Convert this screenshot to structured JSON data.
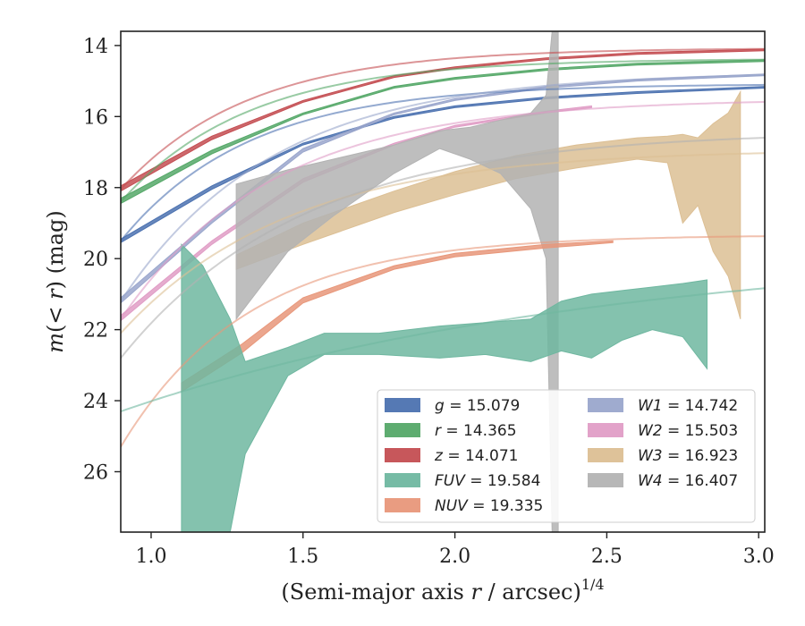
{
  "chart_data": {
    "type": "line",
    "xlabel_pre": "(Semi-major axis ",
    "xlabel_var": "r",
    "xlabel_mid": " / arcsec)",
    "xlabel_sup": "1/4",
    "ylabel_pre": "m(< ",
    "ylabel_var": "r",
    "ylabel_post": ") (mag)",
    "xlim": [
      0.9,
      3.02
    ],
    "ylim": [
      27.7,
      13.6
    ],
    "y_inverted": true,
    "xticks": [
      1.0,
      1.5,
      2.0,
      2.5,
      3.0
    ],
    "xtick_labels": [
      "1.0",
      "1.5",
      "2.0",
      "2.5",
      "3.0"
    ],
    "yticks": [
      14,
      16,
      18,
      20,
      22,
      24,
      26
    ],
    "ytick_labels": [
      "14",
      "16",
      "18",
      "20",
      "22",
      "24",
      "26"
    ],
    "grid": false,
    "legend_placement": "lower-right",
    "legend": [
      {
        "band": "g",
        "value": "15.079",
        "color": "#4c72b0"
      },
      {
        "band": "r",
        "value": "14.365",
        "color": "#55a868"
      },
      {
        "band": "z",
        "value": "14.071",
        "color": "#c44e52"
      },
      {
        "band": "FUV",
        "value": "19.584",
        "color": "#6fb7a0"
      },
      {
        "band": "NUV",
        "value": "19.335",
        "color": "#e8977a"
      },
      {
        "band": "W1",
        "value": "14.742",
        "color": "#9aa6cc"
      },
      {
        "band": "W2",
        "value": "15.503",
        "color": "#e09dc6"
      },
      {
        "band": "W3",
        "value": "16.923",
        "color": "#dcbf94"
      },
      {
        "band": "W4",
        "value": "16.407",
        "color": "#b3b3b3"
      }
    ],
    "series": [
      {
        "band": "g",
        "color": "#4c72b0",
        "asymptote": 15.08,
        "start": 19.5,
        "tau": 0.42,
        "data_end": 3.02,
        "band_points": [
          [
            0.9,
            19.45,
            19.55
          ],
          [
            1.2,
            17.95,
            18.05
          ],
          [
            1.5,
            16.75,
            16.8
          ],
          [
            1.8,
            16.0,
            16.05
          ],
          [
            2.0,
            15.7,
            15.75
          ],
          [
            2.3,
            15.45,
            15.5
          ],
          [
            2.6,
            15.3,
            15.35
          ],
          [
            3.02,
            15.15,
            15.2
          ]
        ]
      },
      {
        "band": "r",
        "color": "#55a868",
        "asymptote": 14.37,
        "start": 18.4,
        "tau": 0.42,
        "data_end": 3.02,
        "band_points": [
          [
            0.9,
            18.3,
            18.45
          ],
          [
            1.2,
            16.95,
            17.05
          ],
          [
            1.5,
            15.9,
            15.95
          ],
          [
            1.8,
            15.15,
            15.2
          ],
          [
            2.0,
            14.9,
            14.95
          ],
          [
            2.3,
            14.65,
            14.7
          ],
          [
            2.6,
            14.5,
            14.55
          ],
          [
            3.02,
            14.4,
            14.45
          ]
        ]
      },
      {
        "band": "z",
        "color": "#c44e52",
        "asymptote": 14.07,
        "start": 18.05,
        "tau": 0.42,
        "data_end": 3.02,
        "band_points": [
          [
            0.9,
            17.95,
            18.1
          ],
          [
            1.2,
            16.55,
            16.65
          ],
          [
            1.5,
            15.55,
            15.6
          ],
          [
            1.8,
            14.85,
            14.9
          ],
          [
            2.0,
            14.6,
            14.65
          ],
          [
            2.3,
            14.35,
            14.4
          ],
          [
            2.6,
            14.2,
            14.25
          ],
          [
            3.02,
            14.1,
            14.15
          ]
        ]
      },
      {
        "band": "W1",
        "color": "#9aa6cc",
        "asymptote": 14.74,
        "start": 21.2,
        "tau": 0.5,
        "data_end": 3.02,
        "band_points": [
          [
            0.9,
            21.1,
            21.25
          ],
          [
            1.2,
            18.9,
            19.0
          ],
          [
            1.5,
            16.9,
            17.0
          ],
          [
            1.8,
            15.9,
            15.95
          ],
          [
            2.0,
            15.5,
            15.55
          ],
          [
            2.3,
            15.15,
            15.2
          ],
          [
            2.6,
            14.95,
            15.0
          ],
          [
            3.02,
            14.8,
            14.85
          ]
        ]
      },
      {
        "band": "W2",
        "color": "#e09dc6",
        "asymptote": 15.5,
        "start": 21.7,
        "tau": 0.5,
        "data_end": 2.45,
        "band_points": [
          [
            0.9,
            21.6,
            21.75
          ],
          [
            1.2,
            19.5,
            19.6
          ],
          [
            1.5,
            17.75,
            17.85
          ],
          [
            1.8,
            16.75,
            16.8
          ],
          [
            2.0,
            16.25,
            16.3
          ],
          [
            2.3,
            15.85,
            15.9
          ],
          [
            2.45,
            15.7,
            15.75
          ]
        ]
      },
      {
        "band": "W3",
        "color": "#dcbf94",
        "asymptote": 16.92,
        "start": 22.1,
        "tau": 0.55,
        "data_end": 1.28,
        "band_points": [
          [
            1.28,
            19.9,
            20.3
          ],
          [
            1.5,
            19.0,
            19.6
          ],
          [
            1.8,
            18.1,
            18.7
          ],
          [
            2.0,
            17.55,
            18.2
          ],
          [
            2.2,
            17.1,
            17.75
          ],
          [
            2.4,
            16.8,
            17.45
          ],
          [
            2.6,
            16.6,
            17.2
          ],
          [
            2.7,
            16.55,
            17.3
          ],
          [
            2.75,
            16.5,
            19.0
          ],
          [
            2.8,
            16.6,
            18.5
          ],
          [
            2.85,
            16.2,
            19.8
          ],
          [
            2.9,
            15.9,
            20.5
          ],
          [
            2.94,
            15.3,
            21.7
          ]
        ]
      },
      {
        "band": "W4",
        "color": "#b3b3b3",
        "asymptote": 16.41,
        "start": 22.8,
        "tau": 0.6,
        "data_end": 1.28,
        "band_points": [
          [
            1.28,
            17.9,
            21.7
          ],
          [
            1.45,
            17.5,
            19.8
          ],
          [
            1.6,
            17.2,
            18.8
          ],
          [
            1.8,
            16.8,
            17.6
          ],
          [
            1.95,
            16.4,
            16.9
          ],
          [
            2.05,
            16.3,
            17.2
          ],
          [
            2.15,
            16.1,
            17.6
          ],
          [
            2.25,
            15.9,
            18.6
          ],
          [
            2.3,
            15.4,
            20.0
          ],
          [
            2.32,
            13.6,
            27.7
          ],
          [
            2.34,
            13.6,
            27.7
          ]
        ]
      },
      {
        "band": "NUV",
        "color": "#e8977a",
        "asymptote": 19.33,
        "start": 25.3,
        "tau": 0.42,
        "data_end": 3.02,
        "band_points": [
          [
            1.1,
            23.5,
            23.75
          ],
          [
            1.3,
            22.4,
            22.65
          ],
          [
            1.5,
            21.1,
            21.25
          ],
          [
            1.8,
            20.2,
            20.3
          ],
          [
            2.0,
            19.85,
            19.95
          ],
          [
            2.3,
            19.6,
            19.7
          ],
          [
            2.52,
            19.5,
            19.55
          ]
        ]
      },
      {
        "band": "FUV",
        "color": "#6fb7a0",
        "asymptote": 19.58,
        "start": 24.3,
        "tau": 1.6,
        "data_end": 3.02,
        "band_points": [
          [
            1.1,
            19.6,
            27.7
          ],
          [
            1.17,
            20.2,
            27.7
          ],
          [
            1.26,
            21.7,
            27.7
          ],
          [
            1.31,
            22.9,
            25.5
          ],
          [
            1.45,
            22.5,
            23.3
          ],
          [
            1.57,
            22.1,
            22.7
          ],
          [
            1.75,
            22.1,
            22.7
          ],
          [
            1.95,
            21.9,
            22.8
          ],
          [
            2.1,
            21.8,
            22.7
          ],
          [
            2.25,
            21.7,
            22.9
          ],
          [
            2.35,
            21.2,
            22.6
          ],
          [
            2.45,
            21.0,
            22.8
          ],
          [
            2.55,
            20.9,
            22.3
          ],
          [
            2.65,
            20.8,
            22.0
          ],
          [
            2.75,
            20.7,
            22.2
          ],
          [
            2.83,
            20.6,
            23.1
          ]
        ]
      }
    ]
  }
}
